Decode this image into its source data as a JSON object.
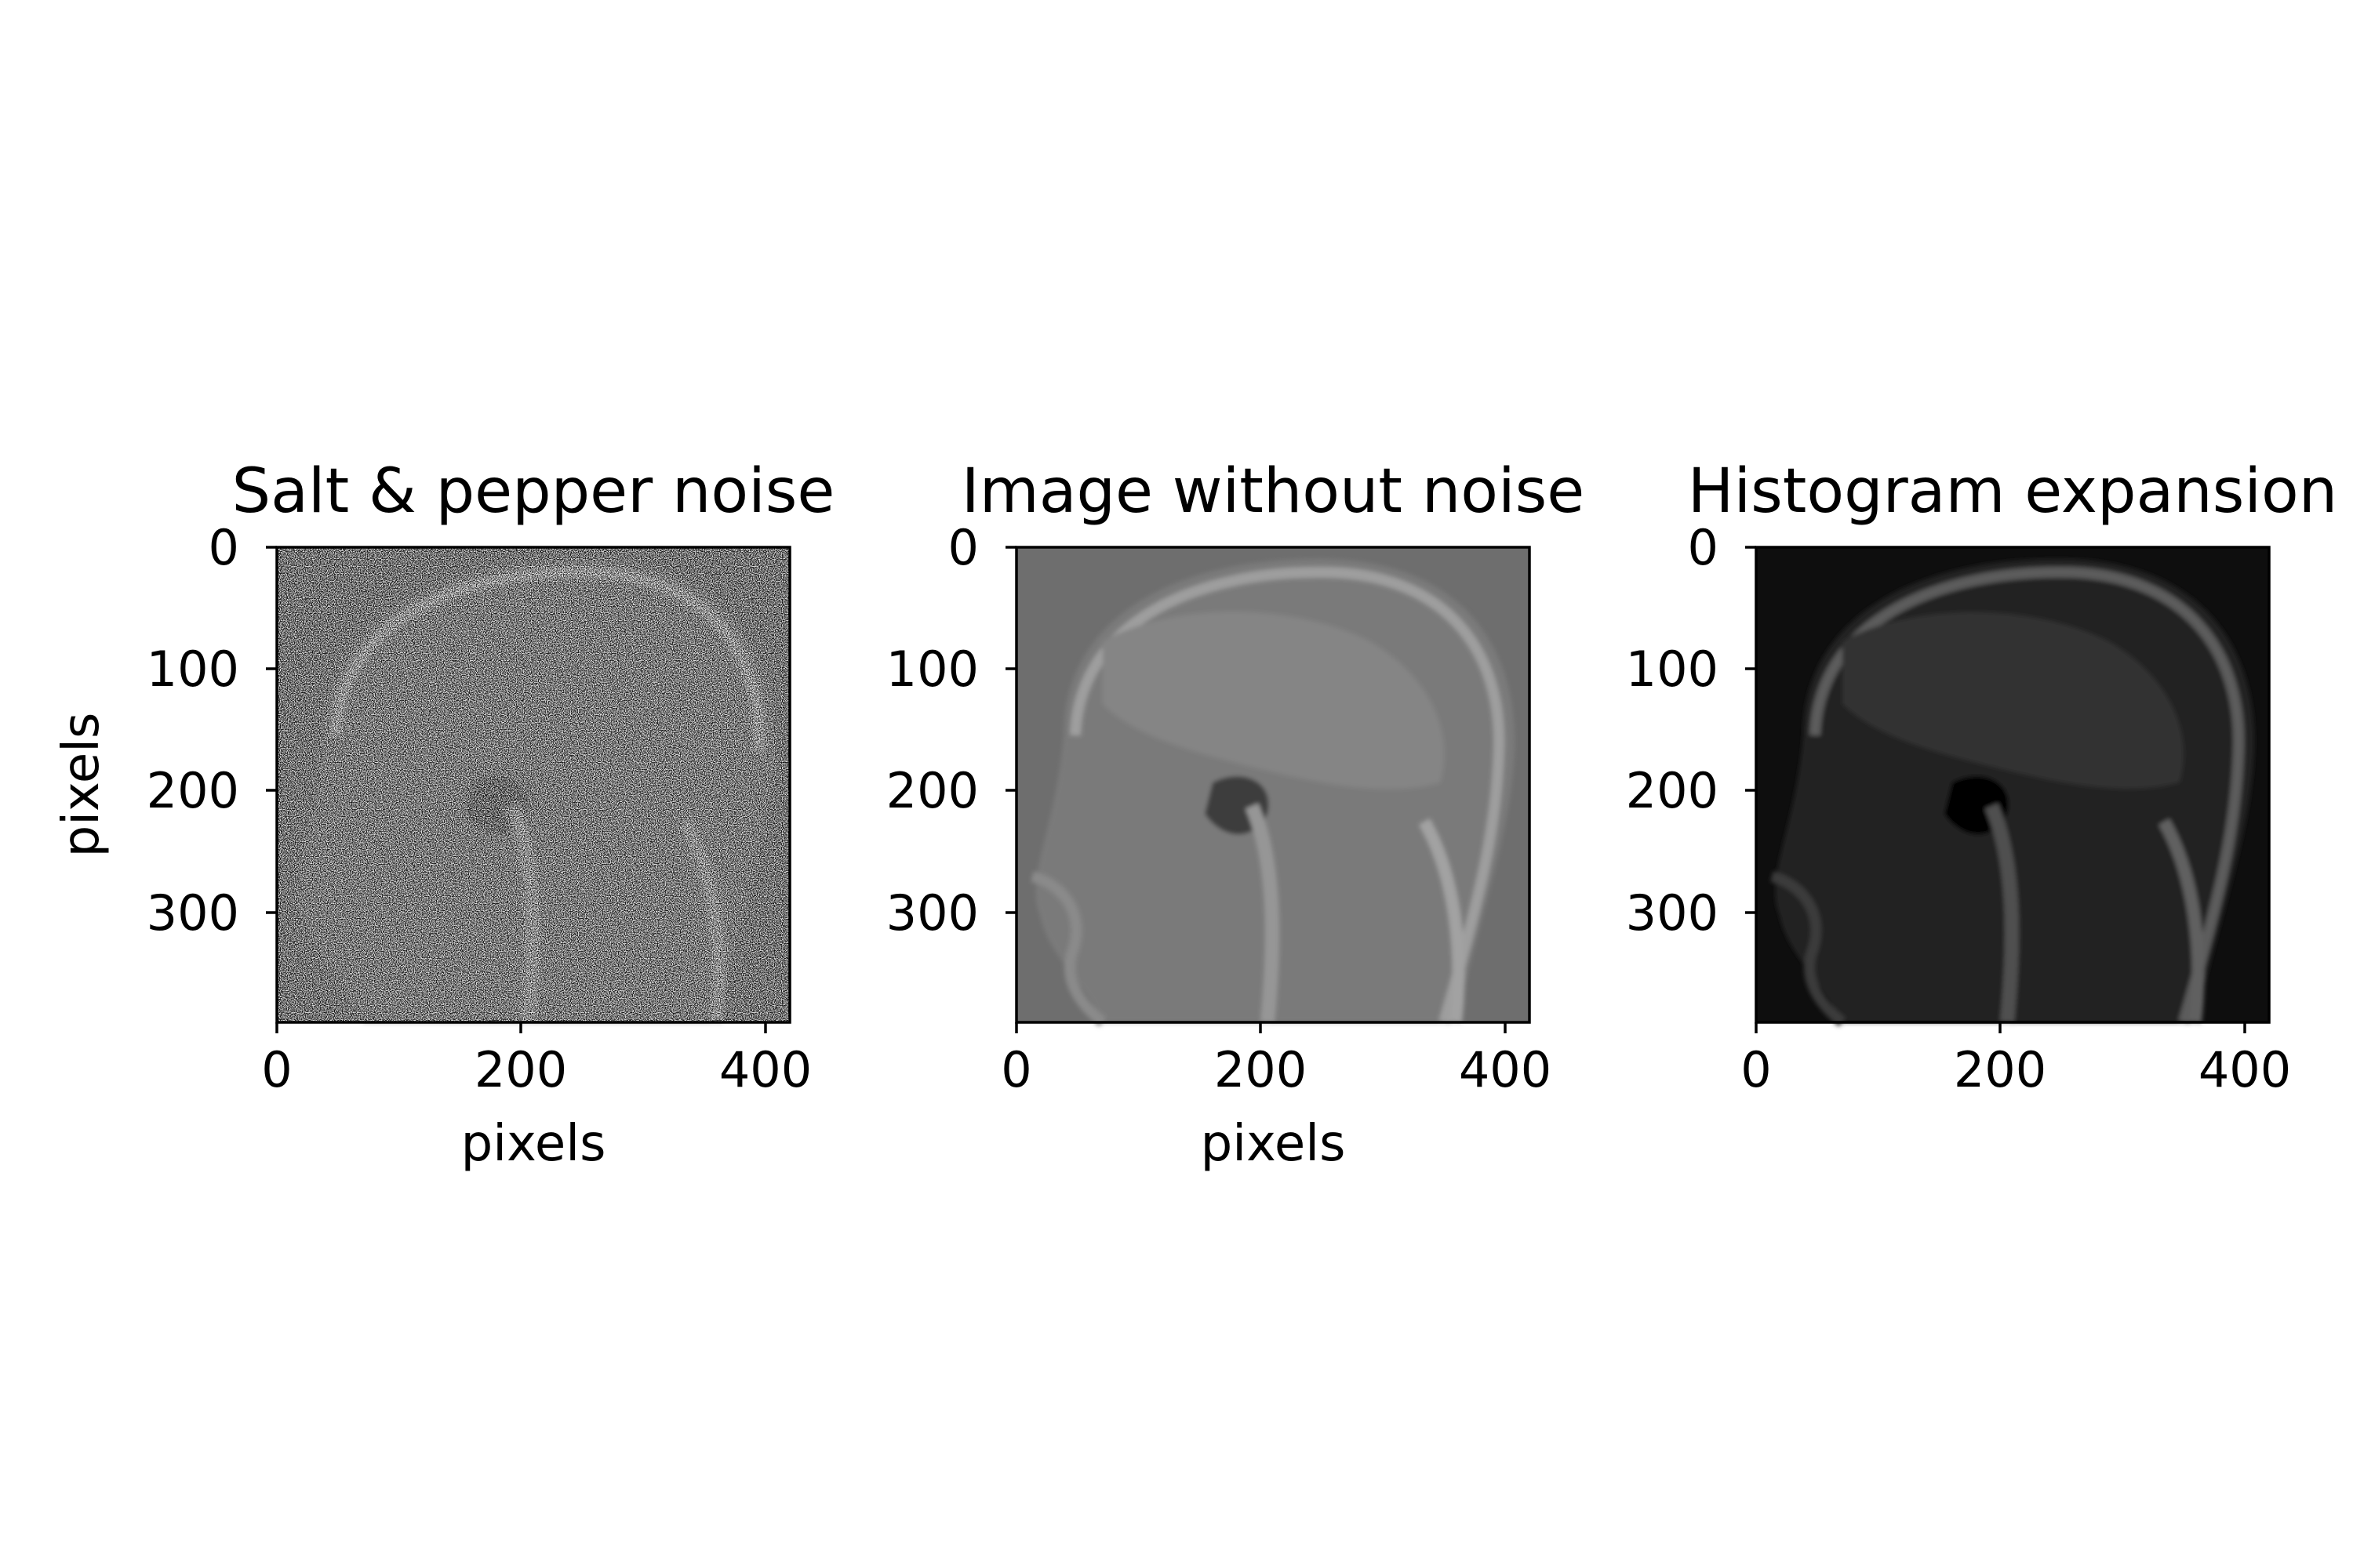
{
  "figure": {
    "panels": [
      {
        "title": "Salt & pepper noise",
        "xlabel": "pixels",
        "ylabel": "pixels",
        "xticks": [
          "0",
          "200",
          "400"
        ],
        "yticks": [
          "0",
          "100",
          "200",
          "300"
        ],
        "image": {
          "description_key": "noisy-mri-sagittal",
          "background": "#636363",
          "tissue": "#7a7a7a",
          "noise": true
        }
      },
      {
        "title": "Image without noise",
        "xlabel": "pixels",
        "ylabel": "",
        "xticks": [
          "0",
          "200",
          "400"
        ],
        "yticks": [
          "0",
          "100",
          "200",
          "300"
        ],
        "image": {
          "description_key": "denoised-mri-sagittal",
          "background": "#6e6e6e",
          "tissue": "#7f7f7f",
          "noise": false
        }
      },
      {
        "title": "Histogram expansion",
        "xlabel": "",
        "ylabel": "",
        "xticks": [
          "0",
          "200",
          "400"
        ],
        "yticks": [
          "0",
          "100",
          "200",
          "300"
        ],
        "image": {
          "description_key": "contrast-stretched-mri-sagittal",
          "background": "#0e0e0e",
          "tissue": "#2a2a2a",
          "noise": false
        }
      }
    ],
    "x_range": [
      0,
      420
    ],
    "y_range": [
      0,
      390
    ]
  }
}
